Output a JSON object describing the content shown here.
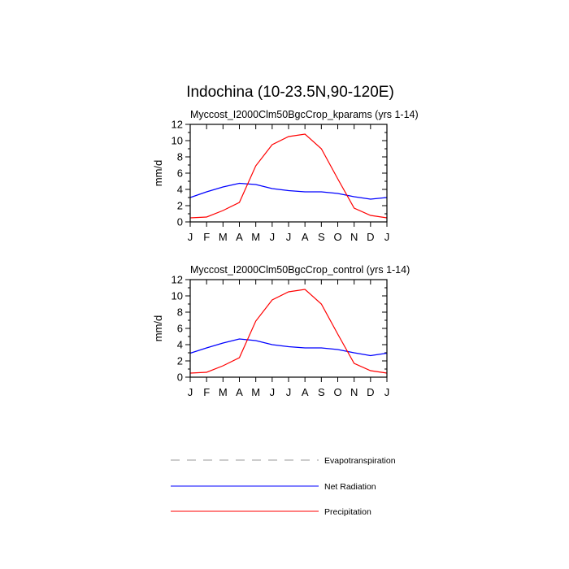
{
  "chart_data": {
    "type": "line",
    "title": "Indochina (10-23.5N,90-120E)",
    "x_tick_labels": [
      "J",
      "F",
      "M",
      "A",
      "M",
      "J",
      "J",
      "A",
      "S",
      "O",
      "N",
      "D",
      "J"
    ],
    "ylim": [
      0,
      12
    ],
    "y_ticks": [
      0,
      2,
      4,
      6,
      8,
      10,
      12
    ],
    "ylabel": "mm/d",
    "panels": [
      {
        "title": "Myccost_I2000Clm50BgcCrop_kparams (yrs 1-14)",
        "series": [
          {
            "name": "Net Radiation",
            "color": "#0000ff",
            "values": [
              3.0,
              3.7,
              4.3,
              4.75,
              4.6,
              4.1,
              3.85,
              3.7,
              3.7,
              3.5,
              3.1,
              2.8,
              3.0
            ]
          },
          {
            "name": "Precipitation",
            "color": "#ff0000",
            "values": [
              0.5,
              0.6,
              1.4,
              2.4,
              6.9,
              9.5,
              10.5,
              10.8,
              9.0,
              5.3,
              1.7,
              0.8,
              0.5
            ]
          }
        ]
      },
      {
        "title": "Myccost_I2000Clm50BgcCrop_control (yrs 1-14)",
        "series": [
          {
            "name": "Net Radiation",
            "color": "#0000ff",
            "values": [
              2.95,
              3.6,
              4.2,
              4.7,
              4.5,
              4.0,
              3.75,
              3.6,
              3.6,
              3.4,
              3.0,
              2.65,
              2.95
            ]
          },
          {
            "name": "Precipitation",
            "color": "#ff0000",
            "values": [
              0.5,
              0.6,
              1.4,
              2.4,
              6.9,
              9.5,
              10.5,
              10.8,
              9.0,
              5.3,
              1.7,
              0.8,
              0.5
            ]
          }
        ]
      }
    ],
    "legend": {
      "placement": "bottom",
      "entries": [
        {
          "label": "Evapotranspiration",
          "color": "#999999",
          "style": "dashed"
        },
        {
          "label": "Net Radiation",
          "color": "#0000ff",
          "style": "solid"
        },
        {
          "label": "Precipitation",
          "color": "#ff0000",
          "style": "solid"
        }
      ]
    }
  }
}
